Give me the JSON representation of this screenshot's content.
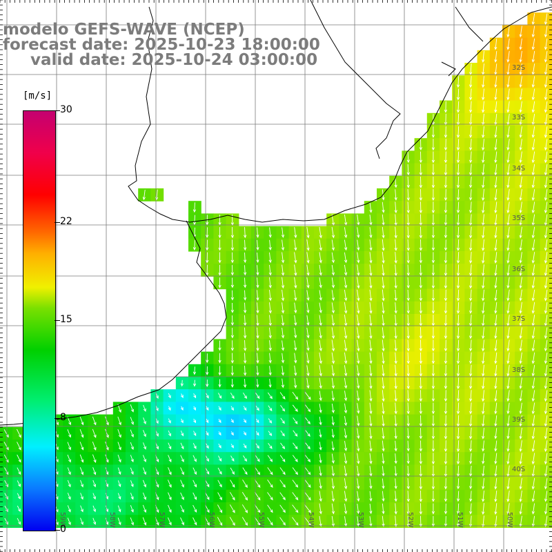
{
  "titles": {
    "line1": "modelo GEFS-WAVE (NCEP)",
    "line2": "forecast date: 2025-10-23 18:00:00",
    "line3": "valid date: 2025-10-24 03:00:00"
  },
  "colorbar": {
    "unit": "[m/s]",
    "min": 0,
    "max": 30,
    "tick_values": [
      0,
      8,
      15,
      22,
      30
    ],
    "tick_labels": [
      "0",
      "8",
      "15",
      "22",
      "30"
    ],
    "stops": [
      "#0000f0",
      "#0a7aff",
      "#00f0ff",
      "#00ee70",
      "#00d000",
      "#7ae000",
      "#f0f000",
      "#ffb000",
      "#ff6a00",
      "#ff0000",
      "#f0004a",
      "#c40070"
    ]
  },
  "map": {
    "lat_range": [
      -41.5,
      -31.0
    ],
    "lon_range": [
      -60.5,
      -49.5
    ],
    "lat_labels": [
      "32S",
      "33S",
      "34S",
      "35S",
      "36S",
      "37S",
      "38S",
      "39S",
      "40S"
    ],
    "lon_labels": [
      "59W",
      "58W",
      "57W",
      "56W",
      "55W",
      "54W",
      "53W",
      "52W",
      "51W",
      "50W"
    ],
    "grid": true,
    "land_color": "#ffffff",
    "coast_color": "#000000",
    "arrow_color": "#ffffff"
  }
}
